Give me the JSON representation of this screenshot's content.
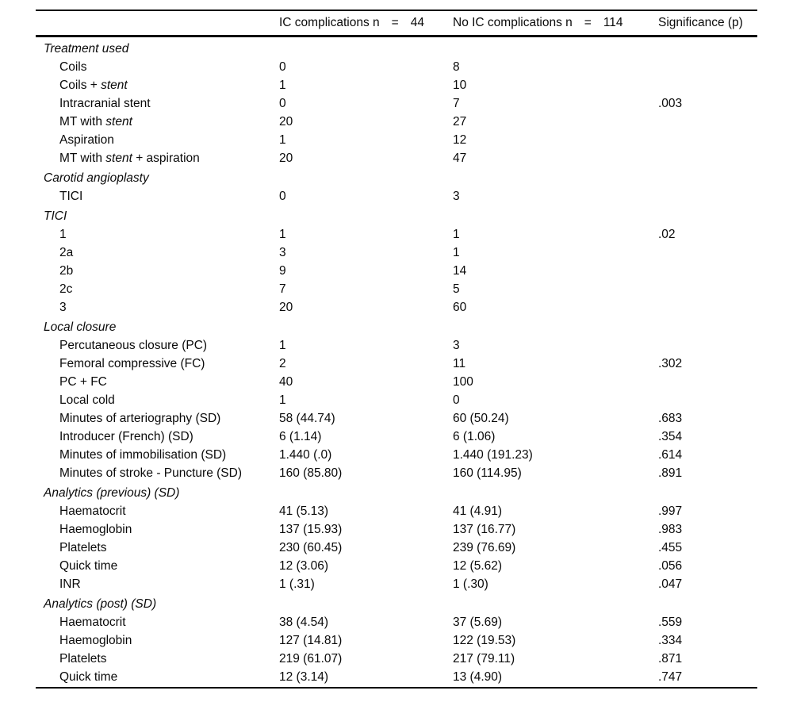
{
  "table": {
    "header": {
      "ic": {
        "label": "IC complications n",
        "eq": "=",
        "n": "44"
      },
      "no_ic": {
        "label": "No IC complications n",
        "eq": "=",
        "n": "114"
      },
      "significance": "Significance (p)"
    },
    "italic_marker_note": "asterisks in labels delimit italicized segments",
    "sections": [
      {
        "title": "Treatment used",
        "rows": [
          {
            "label": "Coils",
            "ic": "0",
            "no_ic": "8",
            "p": ""
          },
          {
            "label": "Coils + *stent*",
            "ic": "1",
            "no_ic": "10",
            "p": ""
          },
          {
            "label": "Intracranial stent",
            "ic": "0",
            "no_ic": "7",
            "p": ".003"
          },
          {
            "label": "MT with *stent*",
            "ic": "20",
            "no_ic": "27",
            "p": ""
          },
          {
            "label": "Aspiration",
            "ic": "1",
            "no_ic": "12",
            "p": ""
          },
          {
            "label": "MT with *stent* + aspiration",
            "ic": "20",
            "no_ic": "47",
            "p": ""
          }
        ]
      },
      {
        "title": "Carotid angioplasty",
        "rows": [
          {
            "label": "TICI",
            "ic": "0",
            "no_ic": "3",
            "p": ""
          }
        ]
      },
      {
        "title": "TICI",
        "rows": [
          {
            "label": "1",
            "ic": "1",
            "no_ic": "1",
            "p": ".02"
          },
          {
            "label": "2a",
            "ic": "3",
            "no_ic": "1",
            "p": ""
          },
          {
            "label": "2b",
            "ic": "9",
            "no_ic": "14",
            "p": ""
          },
          {
            "label": "2c",
            "ic": "7",
            "no_ic": "5",
            "p": ""
          },
          {
            "label": "3",
            "ic": "20",
            "no_ic": "60",
            "p": ""
          }
        ]
      },
      {
        "title": "Local closure",
        "rows": [
          {
            "label": "Percutaneous closure (PC)",
            "ic": "1",
            "no_ic": "3",
            "p": ""
          },
          {
            "label": "Femoral compressive (FC)",
            "ic": "2",
            "no_ic": "11",
            "p": ".302"
          },
          {
            "label": "PC + FC",
            "ic": "40",
            "no_ic": "100",
            "p": ""
          },
          {
            "label": "Local cold",
            "ic": "1",
            "no_ic": "0",
            "p": ""
          },
          {
            "label": "Minutes of arteriography (SD)",
            "ic": "58 (44.74)",
            "no_ic": "60 (50.24)",
            "p": ".683"
          },
          {
            "label": "Introducer (French) (SD)",
            "ic": "6 (1.14)",
            "no_ic": "6 (1.06)",
            "p": ".354"
          },
          {
            "label": "Minutes of immobilisation (SD)",
            "ic": "1.440 (.0)",
            "no_ic": "1.440 (191.23)",
            "p": ".614"
          },
          {
            "label": "Minutes of stroke - Puncture (SD)",
            "ic": "160 (85.80)",
            "no_ic": "160 (114.95)",
            "p": ".891"
          }
        ]
      },
      {
        "title": "Analytics (previous) (SD)",
        "rows": [
          {
            "label": "Haematocrit",
            "ic": "41 (5.13)",
            "no_ic": "41 (4.91)",
            "p": ".997"
          },
          {
            "label": "Haemoglobin",
            "ic": "137 (15.93)",
            "no_ic": "137 (16.77)",
            "p": ".983"
          },
          {
            "label": "Platelets",
            "ic": "230 (60.45)",
            "no_ic": "239 (76.69)",
            "p": ".455"
          },
          {
            "label": "Quick time",
            "ic": "12 (3.06)",
            "no_ic": "12 (5.62)",
            "p": ".056"
          },
          {
            "label": "INR",
            "ic": "1 (.31)",
            "no_ic": "1 (.30)",
            "p": ".047"
          }
        ]
      },
      {
        "title": "Analytics (post) (SD)",
        "rows": [
          {
            "label": "Haematocrit",
            "ic": "38 (4.54)",
            "no_ic": "37 (5.69)",
            "p": ".559"
          },
          {
            "label": "Haemoglobin",
            "ic": "127 (14.81)",
            "no_ic": "122 (19.53)",
            "p": ".334"
          },
          {
            "label": "Platelets",
            "ic": "219 (61.07)",
            "no_ic": "217 (79.11)",
            "p": ".871"
          },
          {
            "label": "Quick time",
            "ic": "12 (3.14)",
            "no_ic": "13 (4.90)",
            "p": ".747"
          }
        ]
      }
    ]
  }
}
